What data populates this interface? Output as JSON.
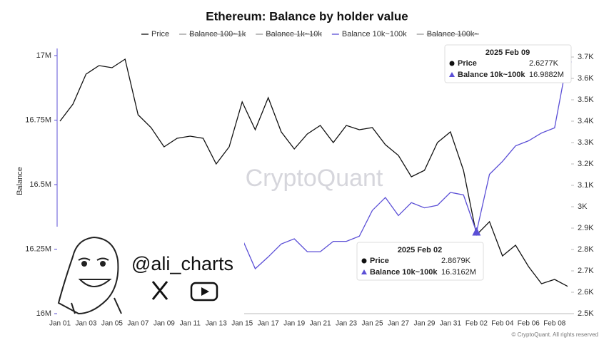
{
  "chart_data": {
    "type": "line",
    "title": "Ethereum: Balance by holder value",
    "ylabel": "Balance",
    "categories": [
      "Jan 01",
      null,
      "Jan 03",
      null,
      "Jan 05",
      null,
      "Jan 07",
      null,
      "Jan 09",
      null,
      "Jan 11",
      null,
      "Jan 13",
      null,
      "Jan 15",
      null,
      "Jan 17",
      null,
      "Jan 19",
      null,
      "Jan 21",
      null,
      "Jan 23",
      null,
      "Jan 25",
      null,
      "Jan 27",
      null,
      "Jan 29",
      null,
      "Jan 31",
      null,
      "Feb 02",
      null,
      "Feb 04",
      null,
      "Feb 06",
      null,
      "Feb 08",
      null
    ],
    "series": [
      {
        "name": "Price",
        "color": "#111111",
        "axis": "y2",
        "values": [
          3.4,
          3.48,
          3.62,
          3.66,
          3.65,
          3.69,
          3.43,
          3.37,
          3.28,
          3.32,
          3.33,
          3.32,
          3.2,
          3.28,
          3.49,
          3.36,
          3.51,
          3.35,
          3.27,
          3.34,
          3.38,
          3.3,
          3.38,
          3.36,
          3.37,
          3.29,
          3.24,
          3.14,
          3.17,
          3.3,
          3.35,
          3.17,
          2.8679,
          2.93,
          2.77,
          2.82,
          2.72,
          2.64,
          2.66,
          2.6277
        ],
        "value_labels": [
          null,
          null,
          null,
          null,
          null,
          null,
          null,
          null,
          null,
          null,
          null,
          null,
          null,
          null,
          null,
          null,
          null,
          null,
          null,
          null,
          null,
          null,
          null,
          null,
          null,
          null,
          null,
          null,
          null,
          null,
          null,
          null,
          "2.8679K",
          null,
          null,
          null,
          null,
          null,
          null,
          "2.6277K"
        ]
      },
      {
        "name": "Balance 10k~100k",
        "color": "#5b4fd6",
        "values": [
          null,
          null,
          null,
          null,
          null,
          null,
          null,
          null,
          null,
          null,
          null,
          null,
          null,
          null,
          16.29,
          16.174,
          16.22,
          16.27,
          16.29,
          16.24,
          16.24,
          16.28,
          16.28,
          16.3,
          16.4,
          16.45,
          16.38,
          16.43,
          16.41,
          16.42,
          16.47,
          16.46,
          16.3162,
          16.54,
          16.59,
          16.65,
          16.67,
          16.7,
          16.72,
          16.9882
        ],
        "value_labels": [
          null,
          null,
          null,
          null,
          null,
          null,
          null,
          null,
          null,
          null,
          null,
          null,
          null,
          null,
          null,
          null,
          null,
          null,
          null,
          null,
          null,
          null,
          null,
          null,
          null,
          null,
          null,
          null,
          null,
          null,
          null,
          null,
          "16.3162M",
          null,
          null,
          null,
          null,
          null,
          null,
          "16.9882M"
        ]
      }
    ],
    "hidden_series": [
      "Balance 100~1k",
      "Balance 1k~10k",
      "Balance 100k~"
    ],
    "tooltips": [
      "2025 Feb 02",
      "2025 Feb 09"
    ],
    "ylim": [
      16,
      17
    ],
    "yticks": [
      {
        "value": 16,
        "label": "16M"
      },
      {
        "value": 16.25,
        "label": "16.25M"
      },
      {
        "value": 16.5,
        "label": "16.5M"
      },
      {
        "value": 16.75,
        "label": "16.75M"
      },
      {
        "value": 17,
        "label": "17M"
      }
    ],
    "y2lim": [
      2.5,
      3.7
    ],
    "y2ticks": [
      {
        "value": 2.5,
        "label": "2.5K"
      },
      {
        "value": 2.6,
        "label": "2.6K"
      },
      {
        "value": 2.7,
        "label": "2.7K"
      },
      {
        "value": 2.8,
        "label": "2.8K"
      },
      {
        "value": 2.9,
        "label": "2.9K"
      },
      {
        "value": 3,
        "label": "3K"
      },
      {
        "value": 3.1,
        "label": "3.1K"
      },
      {
        "value": 3.2,
        "label": "3.2K"
      },
      {
        "value": 3.3,
        "label": "3.3K"
      },
      {
        "value": 3.4,
        "label": "3.4K"
      },
      {
        "value": 3.5,
        "label": "3.5K"
      },
      {
        "value": 3.6,
        "label": "3.6K"
      },
      {
        "value": 3.7,
        "label": "3.7K"
      }
    ],
    "watermark": "CryptoQuant",
    "overlay_handle": "@ali_charts",
    "copyright": "© CryptoQuant. All rights reserved"
  }
}
